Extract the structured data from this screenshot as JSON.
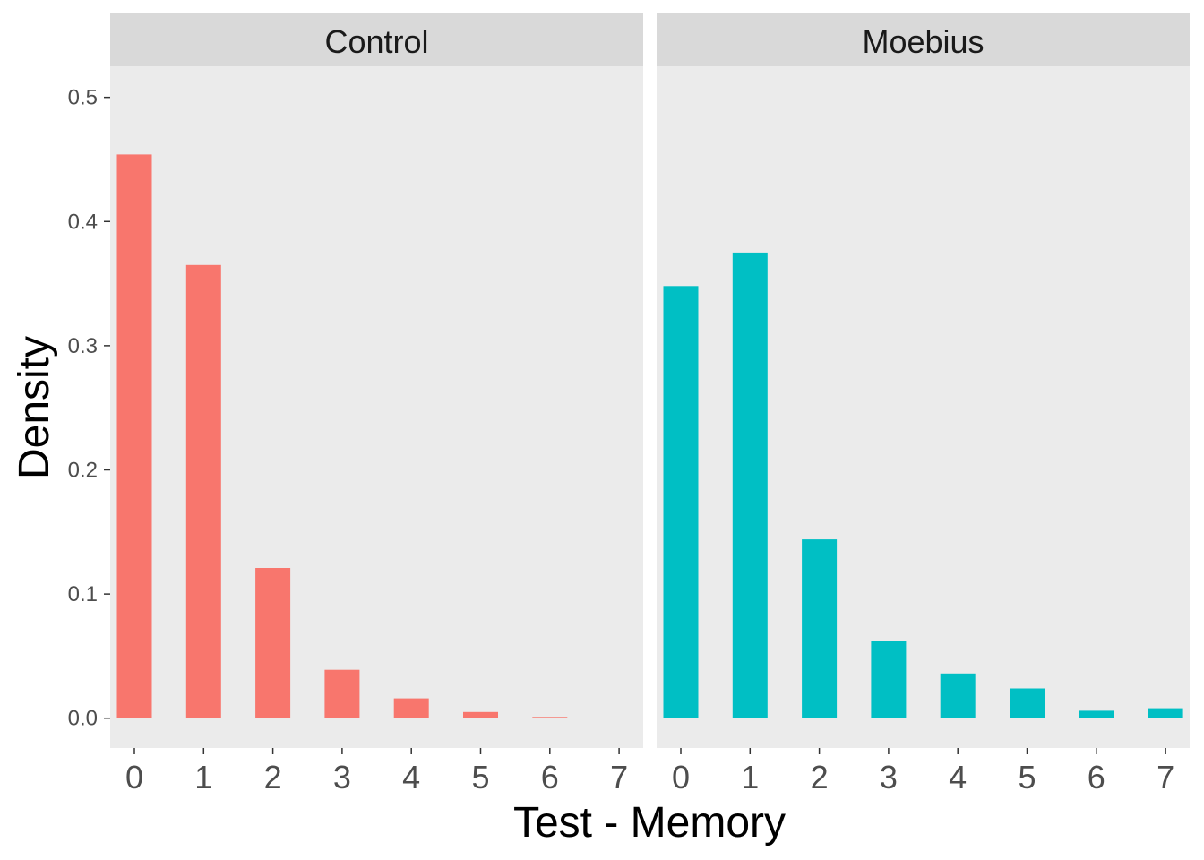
{
  "chart_data": {
    "type": "bar",
    "xlabel": "Test - Memory",
    "ylabel": "Density",
    "ylim": [
      -0.024,
      0.525
    ],
    "yticks": [
      0.0,
      0.1,
      0.2,
      0.3,
      0.4,
      0.5
    ],
    "ytick_labels": [
      "0.0",
      "0.1",
      "0.2",
      "0.3",
      "0.4",
      "0.5"
    ],
    "categories": [
      "0",
      "1",
      "2",
      "3",
      "4",
      "5",
      "6",
      "7"
    ],
    "grid": false,
    "legend": "none",
    "panels": [
      {
        "name": "Control",
        "color": "#F8766D",
        "values": [
          0.454,
          0.365,
          0.121,
          0.039,
          0.016,
          0.005,
          0.001,
          0.0
        ]
      },
      {
        "name": "Moebius",
        "color": "#00BFC4",
        "values": [
          0.348,
          0.375,
          0.144,
          0.062,
          0.036,
          0.024,
          0.006,
          0.008
        ]
      }
    ]
  },
  "theme": {
    "panel_background": "#EBEBEB",
    "strip_background": "#D9D9D9",
    "tick_color": "#333333"
  }
}
